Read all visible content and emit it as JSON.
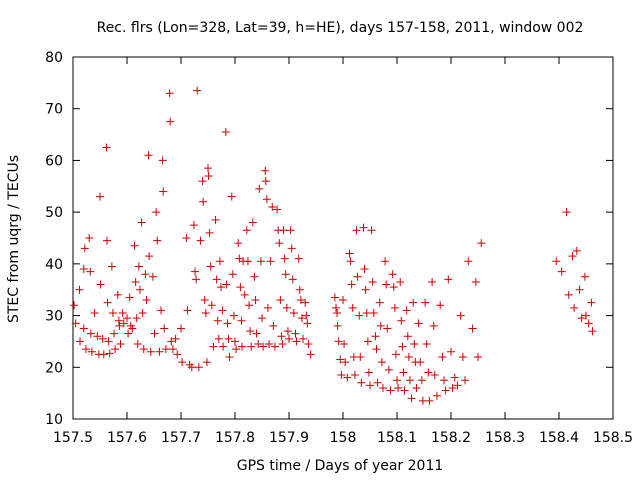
{
  "chart_data": {
    "type": "scatter",
    "title": "Rec. flrs (Lon=328, Lat=39, h=HE), days 157-158, 2011, window 002",
    "xlabel": "GPS time / Days of year 2011",
    "ylabel": "STEC from uqrg / TECUs",
    "xlim": [
      157.5,
      158.5
    ],
    "ylim": [
      10,
      80
    ],
    "x_ticks": [
      157.5,
      157.6,
      157.7,
      157.8,
      157.9,
      158,
      158.1,
      158.2,
      158.3,
      158.4,
      158.5
    ],
    "x_tick_labels": [
      "157.5",
      "157.6",
      "157.7",
      "157.8",
      "157.9",
      "158",
      "158.1",
      "158.2",
      "158.3",
      "158.4",
      "158.5"
    ],
    "y_ticks": [
      10,
      20,
      30,
      40,
      50,
      60,
      70,
      80
    ],
    "y_tick_labels": [
      "10",
      "20",
      "30",
      "40",
      "50",
      "60",
      "70",
      "80"
    ],
    "grid": false,
    "legend": "none",
    "marker": "plus",
    "color": "#cc0000",
    "points": [
      [
        157.502,
        32.0
      ],
      [
        157.505,
        28.5
      ],
      [
        157.512,
        35.0
      ],
      [
        157.513,
        25.0
      ],
      [
        157.52,
        39.0
      ],
      [
        157.52,
        27.5
      ],
      [
        157.522,
        43.0
      ],
      [
        157.524,
        23.5
      ],
      [
        157.53,
        45.0
      ],
      [
        157.532,
        38.5
      ],
      [
        157.533,
        26.5
      ],
      [
        157.535,
        23.0
      ],
      [
        157.54,
        30.5
      ],
      [
        157.545,
        26.0
      ],
      [
        157.548,
        22.5
      ],
      [
        157.55,
        53.0
      ],
      [
        157.551,
        36.0
      ],
      [
        157.555,
        25.5
      ],
      [
        157.557,
        22.5
      ],
      [
        157.562,
        62.5
      ],
      [
        157.563,
        44.5
      ],
      [
        157.564,
        32.5
      ],
      [
        157.566,
        25.0
      ],
      [
        157.568,
        22.7
      ],
      [
        157.572,
        39.5
      ],
      [
        157.574,
        30.5
      ],
      [
        157.576,
        26.5
      ],
      [
        157.578,
        23.5
      ],
      [
        157.583,
        34.0
      ],
      [
        157.585,
        29.0
      ],
      [
        157.586,
        28.0
      ],
      [
        157.588,
        24.5
      ],
      [
        157.592,
        30.5
      ],
      [
        157.594,
        28.5
      ],
      [
        157.6,
        29.5
      ],
      [
        157.602,
        26.5
      ],
      [
        157.605,
        33.5
      ],
      [
        157.607,
        28.0
      ],
      [
        157.61,
        27.5
      ],
      [
        157.614,
        43.5
      ],
      [
        157.616,
        36.5
      ],
      [
        157.618,
        29.5
      ],
      [
        157.62,
        24.5
      ],
      [
        157.622,
        39.5
      ],
      [
        157.624,
        35.0
      ],
      [
        157.627,
        48.0
      ],
      [
        157.629,
        30.5
      ],
      [
        157.631,
        23.5
      ],
      [
        157.634,
        38.0
      ],
      [
        157.636,
        33.0
      ],
      [
        157.64,
        61.0
      ],
      [
        157.641,
        41.5
      ],
      [
        157.644,
        23.0
      ],
      [
        157.648,
        37.5
      ],
      [
        157.651,
        26.5
      ],
      [
        157.654,
        50.0
      ],
      [
        157.656,
        44.5
      ],
      [
        157.66,
        23.0
      ],
      [
        157.663,
        31.0
      ],
      [
        157.666,
        60.0
      ],
      [
        157.667,
        54.0
      ],
      [
        157.669,
        27.5
      ],
      [
        157.672,
        23.5
      ],
      [
        157.679,
        73.0
      ],
      [
        157.68,
        67.5
      ],
      [
        157.682,
        25.0
      ],
      [
        157.685,
        23.5
      ],
      [
        157.69,
        25.5
      ],
      [
        157.693,
        22.5
      ],
      [
        157.7,
        27.5
      ],
      [
        157.702,
        21.0
      ],
      [
        157.71,
        45.0
      ],
      [
        157.712,
        31.0
      ],
      [
        157.716,
        20.5
      ],
      [
        157.72,
        20.0
      ],
      [
        157.724,
        47.5
      ],
      [
        157.726,
        38.5
      ],
      [
        157.728,
        37.0
      ],
      [
        157.73,
        73.5
      ],
      [
        157.733,
        20.0
      ],
      [
        157.736,
        44.5
      ],
      [
        157.74,
        56.0
      ],
      [
        157.741,
        52.0
      ],
      [
        157.744,
        33.0
      ],
      [
        157.746,
        30.5
      ],
      [
        157.748,
        21.0
      ],
      [
        157.75,
        58.5
      ],
      [
        157.751,
        57.0
      ],
      [
        157.753,
        46.0
      ],
      [
        157.755,
        39.5
      ],
      [
        157.757,
        32.0
      ],
      [
        157.76,
        24.0
      ],
      [
        157.764,
        48.5
      ],
      [
        157.766,
        37.0
      ],
      [
        157.768,
        29.0
      ],
      [
        157.77,
        25.5
      ],
      [
        157.772,
        40.5
      ],
      [
        157.774,
        35.5
      ],
      [
        157.777,
        31.0
      ],
      [
        157.778,
        24.0
      ],
      [
        157.783,
        65.5
      ],
      [
        157.784,
        36.0
      ],
      [
        157.786,
        28.5
      ],
      [
        157.788,
        25.5
      ],
      [
        157.79,
        22.0
      ],
      [
        157.794,
        53.0
      ],
      [
        157.796,
        38.0
      ],
      [
        157.798,
        30.0
      ],
      [
        157.8,
        25.0
      ],
      [
        157.802,
        23.5
      ],
      [
        157.806,
        44.0
      ],
      [
        157.808,
        41.0
      ],
      [
        157.81,
        35.5
      ],
      [
        157.812,
        29.0
      ],
      [
        157.813,
        24.0
      ],
      [
        157.815,
        40.5
      ],
      [
        157.818,
        34.0
      ],
      [
        157.822,
        46.5
      ],
      [
        157.824,
        40.5
      ],
      [
        157.826,
        32.0
      ],
      [
        157.828,
        27.0
      ],
      [
        157.83,
        24.0
      ],
      [
        157.833,
        48.0
      ],
      [
        157.836,
        37.5
      ],
      [
        157.838,
        33.0
      ],
      [
        157.84,
        26.5
      ],
      [
        157.843,
        24.5
      ],
      [
        157.845,
        54.5
      ],
      [
        157.848,
        40.5
      ],
      [
        157.85,
        29.5
      ],
      [
        157.852,
        24.0
      ],
      [
        157.856,
        58.0
      ],
      [
        157.857,
        56.0
      ],
      [
        157.859,
        52.5
      ],
      [
        157.861,
        31.5
      ],
      [
        157.863,
        24.5
      ],
      [
        157.866,
        40.5
      ],
      [
        157.869,
        51.0
      ],
      [
        157.871,
        28.0
      ],
      [
        157.874,
        24.0
      ],
      [
        157.878,
        50.5
      ],
      [
        157.88,
        46.5
      ],
      [
        157.882,
        44.0
      ],
      [
        157.884,
        33.0
      ],
      [
        157.886,
        26.0
      ],
      [
        157.888,
        24.5
      ],
      [
        157.89,
        46.5
      ],
      [
        157.892,
        41.0
      ],
      [
        157.894,
        38.0
      ],
      [
        157.896,
        31.5
      ],
      [
        157.898,
        27.0
      ],
      [
        157.9,
        25.5
      ],
      [
        157.903,
        46.5
      ],
      [
        157.905,
        43.0
      ],
      [
        157.907,
        37.0
      ],
      [
        157.909,
        30.5
      ],
      [
        157.912,
        26.5
      ],
      [
        157.914,
        25.0
      ],
      [
        157.918,
        41.0
      ],
      [
        157.92,
        35.0
      ],
      [
        157.922,
        33.0
      ],
      [
        157.924,
        29.5
      ],
      [
        157.926,
        25.5
      ],
      [
        157.93,
        32.5
      ],
      [
        157.932,
        30.0
      ],
      [
        157.934,
        28.5
      ],
      [
        157.936,
        24.5
      ],
      [
        157.94,
        22.5
      ],
      [
        157.985,
        33.5
      ],
      [
        157.987,
        31.5
      ],
      [
        157.989,
        30.5
      ],
      [
        157.99,
        28.0
      ],
      [
        157.992,
        25.0
      ],
      [
        157.995,
        21.5
      ],
      [
        157.997,
        18.5
      ],
      [
        158.0,
        33.0
      ],
      [
        158.002,
        24.5
      ],
      [
        158.004,
        21.0
      ],
      [
        158.008,
        18.0
      ],
      [
        158.012,
        42.0
      ],
      [
        158.014,
        40.5
      ],
      [
        158.016,
        36.0
      ],
      [
        158.018,
        31.5
      ],
      [
        158.02,
        22.0
      ],
      [
        158.022,
        18.5
      ],
      [
        158.025,
        46.5
      ],
      [
        158.027,
        37.5
      ],
      [
        158.03,
        30.0
      ],
      [
        158.032,
        22.0
      ],
      [
        158.034,
        17.0
      ],
      [
        158.038,
        47.0
      ],
      [
        158.04,
        39.0
      ],
      [
        158.042,
        35.0
      ],
      [
        158.044,
        30.5
      ],
      [
        158.046,
        25.0
      ],
      [
        158.048,
        19.0
      ],
      [
        158.05,
        16.5
      ],
      [
        158.053,
        46.5
      ],
      [
        158.055,
        36.5
      ],
      [
        158.057,
        30.5
      ],
      [
        158.06,
        26.0
      ],
      [
        158.062,
        23.5
      ],
      [
        158.064,
        17.0
      ],
      [
        158.068,
        32.5
      ],
      [
        158.07,
        28.0
      ],
      [
        158.072,
        21.0
      ],
      [
        158.074,
        16.0
      ],
      [
        158.078,
        40.5
      ],
      [
        158.08,
        36.0
      ],
      [
        158.082,
        27.5
      ],
      [
        158.085,
        19.5
      ],
      [
        158.088,
        15.5
      ],
      [
        158.092,
        38.0
      ],
      [
        158.094,
        35.5
      ],
      [
        158.096,
        31.5
      ],
      [
        158.098,
        22.5
      ],
      [
        158.1,
        17.5
      ],
      [
        158.102,
        16.0
      ],
      [
        158.106,
        36.5
      ],
      [
        158.108,
        29.0
      ],
      [
        158.11,
        24.0
      ],
      [
        158.112,
        19.0
      ],
      [
        158.114,
        15.5
      ],
      [
        158.118,
        31.0
      ],
      [
        158.12,
        26.0
      ],
      [
        158.122,
        22.0
      ],
      [
        158.124,
        17.5
      ],
      [
        158.127,
        14.0
      ],
      [
        158.13,
        32.5
      ],
      [
        158.132,
        24.5
      ],
      [
        158.134,
        21.0
      ],
      [
        158.136,
        16.0
      ],
      [
        158.14,
        28.5
      ],
      [
        158.143,
        21.0
      ],
      [
        158.146,
        17.5
      ],
      [
        158.148,
        13.5
      ],
      [
        158.152,
        32.5
      ],
      [
        158.155,
        24.5
      ],
      [
        158.158,
        19.0
      ],
      [
        158.16,
        13.5
      ],
      [
        158.165,
        36.5
      ],
      [
        158.168,
        28.0
      ],
      [
        158.17,
        18.5
      ],
      [
        158.174,
        14.5
      ],
      [
        158.18,
        32.0
      ],
      [
        158.184,
        22.0
      ],
      [
        158.187,
        17.5
      ],
      [
        158.19,
        15.5
      ],
      [
        158.195,
        37.0
      ],
      [
        158.2,
        23.0
      ],
      [
        158.203,
        16.0
      ],
      [
        158.207,
        18.0
      ],
      [
        158.212,
        16.5
      ],
      [
        158.218,
        30.0
      ],
      [
        158.222,
        22.0
      ],
      [
        158.226,
        17.5
      ],
      [
        158.232,
        40.5
      ],
      [
        158.24,
        27.5
      ],
      [
        158.246,
        36.5
      ],
      [
        158.25,
        22.0
      ],
      [
        158.256,
        44.0
      ],
      [
        158.395,
        40.5
      ],
      [
        158.405,
        38.5
      ],
      [
        158.414,
        50.0
      ],
      [
        158.418,
        34.0
      ],
      [
        158.425,
        41.5
      ],
      [
        158.428,
        31.5
      ],
      [
        158.433,
        42.5
      ],
      [
        158.438,
        35.0
      ],
      [
        158.442,
        29.5
      ],
      [
        158.448,
        37.5
      ],
      [
        158.45,
        30.0
      ],
      [
        158.455,
        28.5
      ],
      [
        158.46,
        32.5
      ],
      [
        158.462,
        27.0
      ]
    ]
  }
}
